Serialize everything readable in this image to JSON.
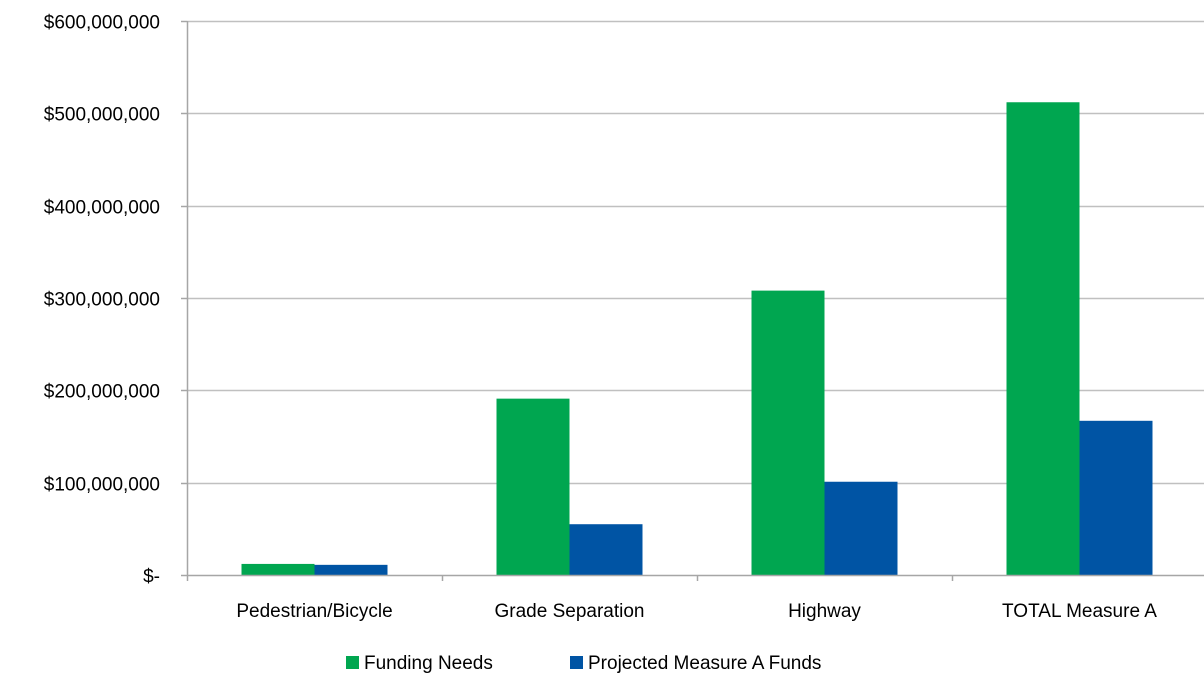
{
  "chart_data": {
    "type": "bar",
    "title": "",
    "xlabel": "",
    "ylabel": "",
    "categories": [
      "Pedestrian/Bicycle",
      "Grade Separation",
      "Highway",
      "TOTAL Measure A"
    ],
    "series": [
      {
        "name": "Funding Needs",
        "color": "#00A650",
        "values": [
          12000000,
          191000000,
          308000000,
          512000000
        ]
      },
      {
        "name": "Projected Measure A Funds",
        "color": "#0054A4",
        "values": [
          11000000,
          55000000,
          101000000,
          167000000
        ]
      }
    ],
    "ylim": [
      0,
      600000000
    ],
    "yticks": [
      0,
      100000000,
      200000000,
      300000000,
      400000000,
      500000000,
      600000000
    ],
    "ytick_labels": [
      "$-",
      "$100,000,000",
      "$200,000,000",
      "$300,000,000",
      "$400,000,000",
      "$500,000,000",
      "$600,000,000"
    ],
    "grid": true,
    "legend_position": "bottom-center",
    "gridline_color": "#C0C0C0",
    "axis_color": "#A6A6A6"
  }
}
